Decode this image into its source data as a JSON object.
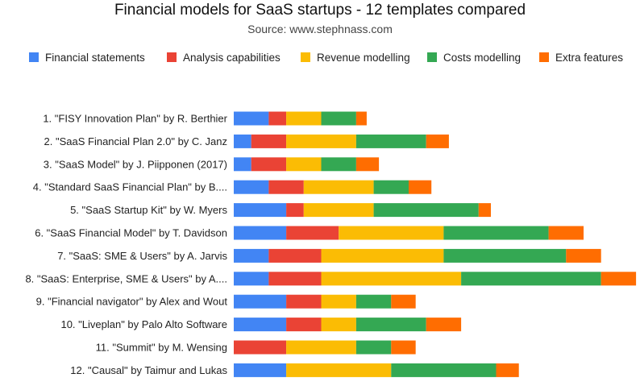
{
  "chart_data": {
    "type": "bar",
    "orientation": "horizontal",
    "stacked": true,
    "title": "Financial models for SaaS startups - 12 templates compared",
    "subtitle": "Source: www.stephnass.com",
    "legend_position": "top",
    "grid": false,
    "xlim": [
      0,
      23
    ],
    "categories": [
      "1. \"FISY Innovation Plan\" by R. Berthier",
      "2. \"SaaS Financial Plan 2.0\" by C. Janz",
      "3. \"SaaS Model\" by J. Piipponen (2017)",
      "4. \"Standard SaaS Financial Plan\" by B....",
      "5. \"SaaS Startup Kit\" by W. Myers",
      "6. \"SaaS Financial Model\" by T. Davidson",
      "7. \"SaaS: SME & Users\" by A. Jarvis",
      "8. \"SaaS: Enterprise, SME & Users\" by A....",
      "9. \"Financial navigator\" by Alex and Wout",
      "10. \"Liveplan\" by Palo Alto Software",
      "11. \"Summit\" by M. Wensing",
      "12. \"Causal\" by Taimur and Lukas"
    ],
    "series": [
      {
        "name": "Financial statements",
        "color": "#4285f4",
        "values": [
          2,
          1,
          1,
          2,
          3,
          3,
          2,
          2,
          3,
          3,
          0,
          3
        ]
      },
      {
        "name": "Analysis capabilities",
        "color": "#ea4335",
        "values": [
          1,
          2,
          2,
          2,
          1,
          3,
          3,
          3,
          2,
          2,
          3,
          0
        ]
      },
      {
        "name": "Revenue modelling",
        "color": "#fbbc04",
        "values": [
          2,
          4,
          2,
          4,
          4,
          6,
          7,
          8,
          2,
          2,
          4,
          6
        ]
      },
      {
        "name": "Costs modelling",
        "color": "#34a853",
        "values": [
          2,
          4,
          2,
          2,
          6,
          6,
          7,
          8,
          2,
          4,
          2,
          6
        ]
      },
      {
        "name": "Extra features",
        "color": "#ff6d01",
        "values": [
          0.6,
          1.3,
          1.3,
          1.3,
          0.7,
          2,
          2,
          2,
          1.4,
          2,
          1.4,
          1.3
        ]
      }
    ]
  }
}
